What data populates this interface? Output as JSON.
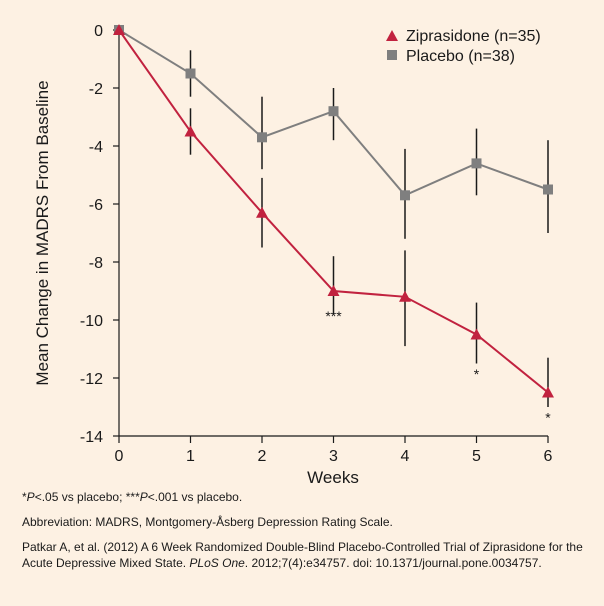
{
  "chart_data": {
    "type": "line",
    "xlabel": "Weeks",
    "ylabel": "Mean Change in MADRS From Baseline",
    "x": [
      0,
      1,
      2,
      3,
      4,
      5,
      6
    ],
    "xlim": [
      0,
      6
    ],
    "ylim": [
      -14,
      0
    ],
    "xticks": [
      0,
      1,
      2,
      3,
      4,
      5,
      6
    ],
    "yticks": [
      0,
      -2,
      -4,
      -6,
      -8,
      -10,
      -12,
      -14
    ],
    "grid": false,
    "legend_position": "top-right",
    "series": [
      {
        "name": "Ziprasidone (n=35)",
        "marker": "triangle",
        "color": "#c1223f",
        "values": [
          0,
          -3.5,
          -6.3,
          -9.0,
          -9.2,
          -10.5,
          -12.5
        ],
        "error_low": [
          0,
          -4.3,
          -7.5,
          -9.8,
          -10.9,
          -11.5,
          -13.0
        ],
        "error_high": [
          0,
          -2.7,
          -5.1,
          -7.8,
          -7.6,
          -9.4,
          -11.3
        ]
      },
      {
        "name": "Placebo (n=38)",
        "marker": "square",
        "color": "#7f7f7f",
        "values": [
          0,
          -1.5,
          -3.7,
          -2.8,
          -5.7,
          -4.6,
          -5.5
        ],
        "error_low": [
          0,
          -2.3,
          -4.8,
          -3.8,
          -7.2,
          -5.7,
          -7.0
        ],
        "error_high": [
          0,
          -0.7,
          -2.3,
          -2.0,
          -4.1,
          -3.4,
          -3.8
        ]
      }
    ],
    "annotations": [
      {
        "x": 3,
        "y": -9.9,
        "text": "***"
      },
      {
        "x": 5,
        "y": -11.9,
        "text": "*"
      },
      {
        "x": 6,
        "y": -13.4,
        "text": "*"
      }
    ]
  },
  "footnotes": {
    "sig_note": {
      "p1": "P",
      "p2": "<.05 vs placebo; ***",
      "p3": "P",
      "p4": "<.001 vs placebo."
    },
    "abbreviation": "Abbreviation: MADRS, Montgomery-Åsberg Depression Rating Scale.",
    "citation": {
      "part1": "Patkar A, et al. (2012) A 6 Week Randomized Double-Blind Placebo-Controlled Trial of Ziprasidone for the Acute Depressive Mixed State. ",
      "journal": "PLoS One",
      "part2": ". 2012;7(4):e34757. doi: 10.1371/journal.pone.0034757."
    }
  }
}
